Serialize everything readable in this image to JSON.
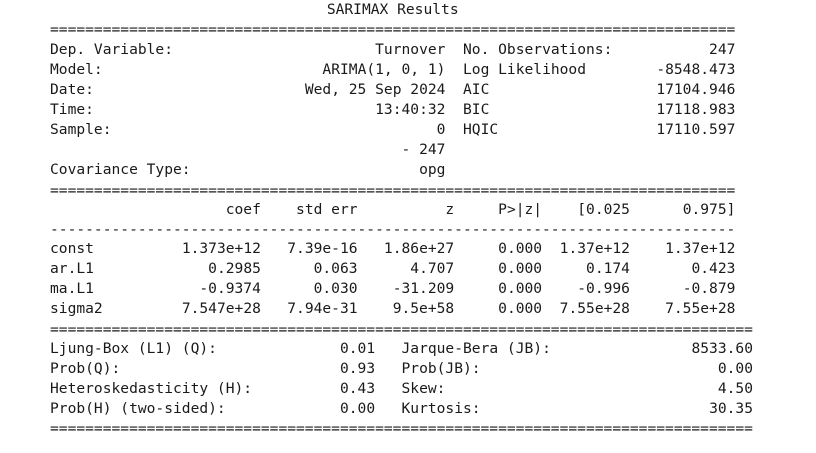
{
  "title": "SARIMAX Results",
  "rules": {
    "double_wide": "================================================================================",
    "double_narrow": "==============================================================================",
    "dash_narrow": "------------------------------------------------------------------------------"
  },
  "model_info": {
    "rows": [
      {
        "label": "Dep. Variable:",
        "value": "Turnover",
        "stat_label": "No. Observations:",
        "stat_value": "247"
      },
      {
        "label": "Model:",
        "value": "ARIMA(1, 0, 1)",
        "stat_label": "Log Likelihood",
        "stat_value": "-8548.473"
      },
      {
        "label": "Date:",
        "value": "Wed, 25 Sep 2024",
        "stat_label": "AIC",
        "stat_value": "17104.946"
      },
      {
        "label": "Time:",
        "value": "13:40:32",
        "stat_label": "BIC",
        "stat_value": "17118.983"
      },
      {
        "label": "Sample:",
        "value": "0",
        "stat_label": "HQIC",
        "stat_value": "17110.597"
      },
      {
        "label": "",
        "value": "- 247",
        "stat_label": "",
        "stat_value": ""
      },
      {
        "label": "Covariance Type:",
        "value": "opg",
        "stat_label": "",
        "stat_value": ""
      }
    ]
  },
  "coef_table": {
    "columns": [
      "coef",
      "std err",
      "z",
      "P>|z|",
      "[0.025",
      "0.975]"
    ],
    "rows": [
      {
        "name": "const",
        "values": [
          "1.373e+12",
          "7.39e-16",
          "1.86e+27",
          "0.000",
          "1.37e+12",
          "1.37e+12"
        ]
      },
      {
        "name": "ar.L1",
        "values": [
          "0.2985",
          "0.063",
          "4.707",
          "0.000",
          "0.174",
          "0.423"
        ]
      },
      {
        "name": "ma.L1",
        "values": [
          "-0.9374",
          "0.030",
          "-31.209",
          "0.000",
          "-0.996",
          "-0.879"
        ]
      },
      {
        "name": "sigma2",
        "values": [
          "7.547e+28",
          "7.94e-31",
          "9.5e+58",
          "0.000",
          "7.55e+28",
          "7.55e+28"
        ]
      }
    ]
  },
  "diagnostics": {
    "rows": [
      {
        "label": "Ljung-Box (L1) (Q):",
        "value": "0.01",
        "stat_label": "Jarque-Bera (JB):",
        "stat_value": "8533.60"
      },
      {
        "label": "Prob(Q):",
        "value": "0.93",
        "stat_label": "Prob(JB):",
        "stat_value": "0.00"
      },
      {
        "label": "Heteroskedasticity (H):",
        "value": "0.43",
        "stat_label": "Skew:",
        "stat_value": "4.50"
      },
      {
        "label": "Prob(H) (two-sided):",
        "value": "0.00",
        "stat_label": "Kurtosis:",
        "stat_value": "30.35"
      }
    ]
  }
}
